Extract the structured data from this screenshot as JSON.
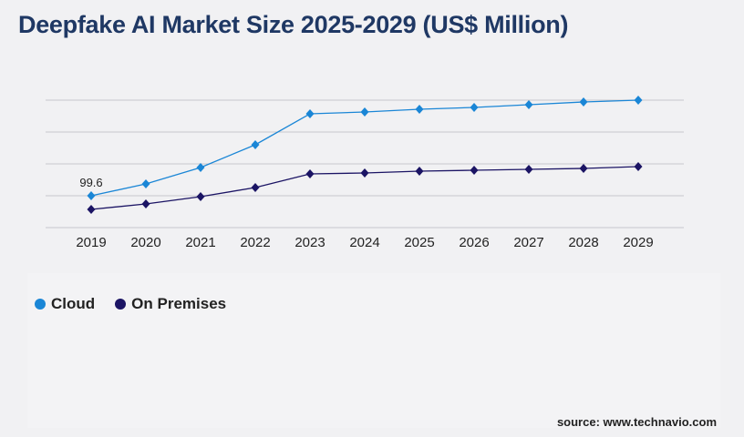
{
  "title": "Deepfake AI Market Size 2025-2029 (US$ Million)",
  "source": "source: www.technavio.com",
  "chart_data": {
    "type": "line",
    "title": "Deepfake AI Market Size 2025-2029 (US$ Million)",
    "xlabel": "",
    "ylabel": "",
    "x": [
      "2019",
      "2020",
      "2021",
      "2022",
      "2023",
      "2024",
      "2025",
      "2026",
      "2027",
      "2028",
      "2029"
    ],
    "ylim": [
      0,
      398.4
    ],
    "grid": true,
    "legend_placement": "bottom-left",
    "annotations": [
      {
        "series": "Cloud",
        "x": "2019",
        "text": "99.6"
      }
    ],
    "series": [
      {
        "name": "Cloud",
        "color": "#1a86d6",
        "values": [
          99.6,
          136.6,
          187.8,
          259.0,
          355.7,
          361.4,
          370.0,
          375.7,
          384.2,
          392.7,
          398.4
        ]
      },
      {
        "name": "On Premises",
        "color": "#1b1464",
        "values": [
          56.9,
          74.0,
          96.7,
          125.2,
          167.9,
          170.7,
          176.4,
          179.3,
          182.1,
          185.0,
          190.7
        ]
      }
    ]
  }
}
